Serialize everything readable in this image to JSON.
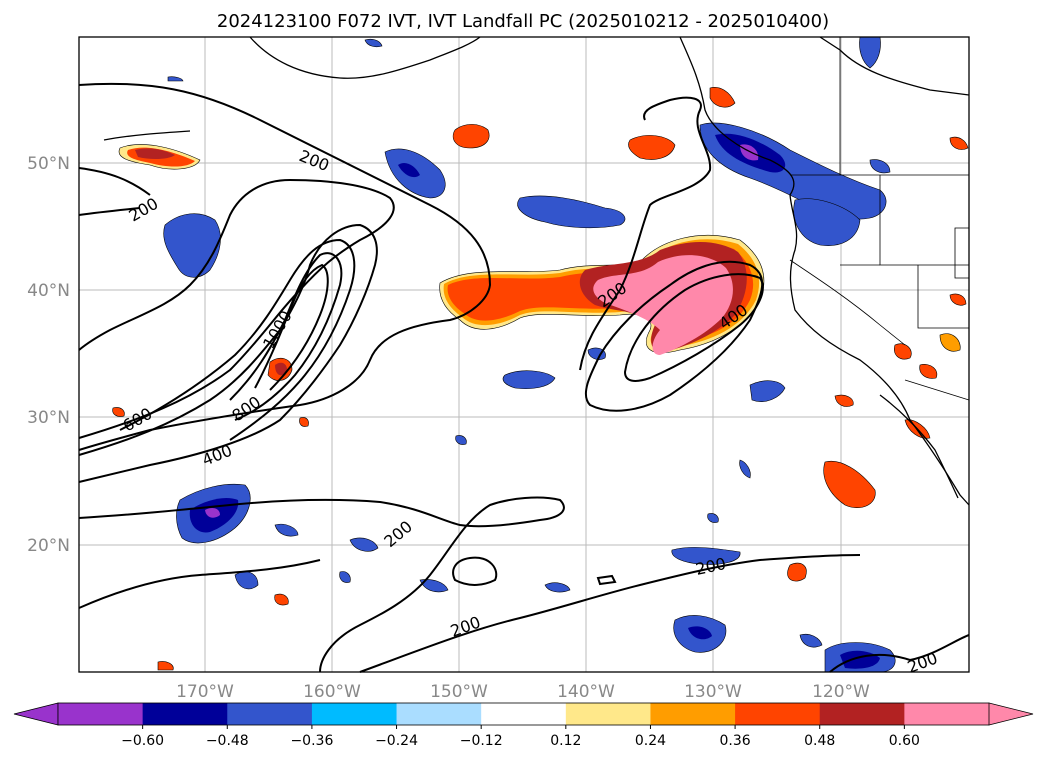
{
  "title": "2024123100 F072 IVT, IVT Landfall PC (2025010212 - 2025010400)",
  "axes": {
    "lon_ticks": [
      "170°W",
      "160°W",
      "150°W",
      "140°W",
      "130°W",
      "120°W"
    ],
    "lat_ticks": [
      "50°N",
      "40°N",
      "30°N",
      "20°N"
    ]
  },
  "colorbar": {
    "ticks": [
      "−0.60",
      "−0.48",
      "−0.36",
      "−0.24",
      "−0.12",
      "0.12",
      "0.24",
      "0.36",
      "0.48",
      "0.60"
    ],
    "colors": [
      "#9933cc",
      "#000099",
      "#3355cc",
      "#00bbff",
      "#aaddff",
      "#ffffff",
      "#ffe88a",
      "#ff9d00",
      "#ff4400",
      "#b22222",
      "#ff88aa"
    ],
    "extend": "both"
  },
  "contours": {
    "labels": [
      "200",
      "200",
      "200",
      "200",
      "200",
      "200",
      "400",
      "400",
      "600",
      "800",
      "1000",
      "200",
      "200"
    ]
  },
  "colors": {
    "positive_high": "#ff88aa",
    "positive_mid": "#ff4400",
    "negative_high": "#000099",
    "negative_mid": "#3355cc",
    "gridline": "#bbbbbb"
  }
}
